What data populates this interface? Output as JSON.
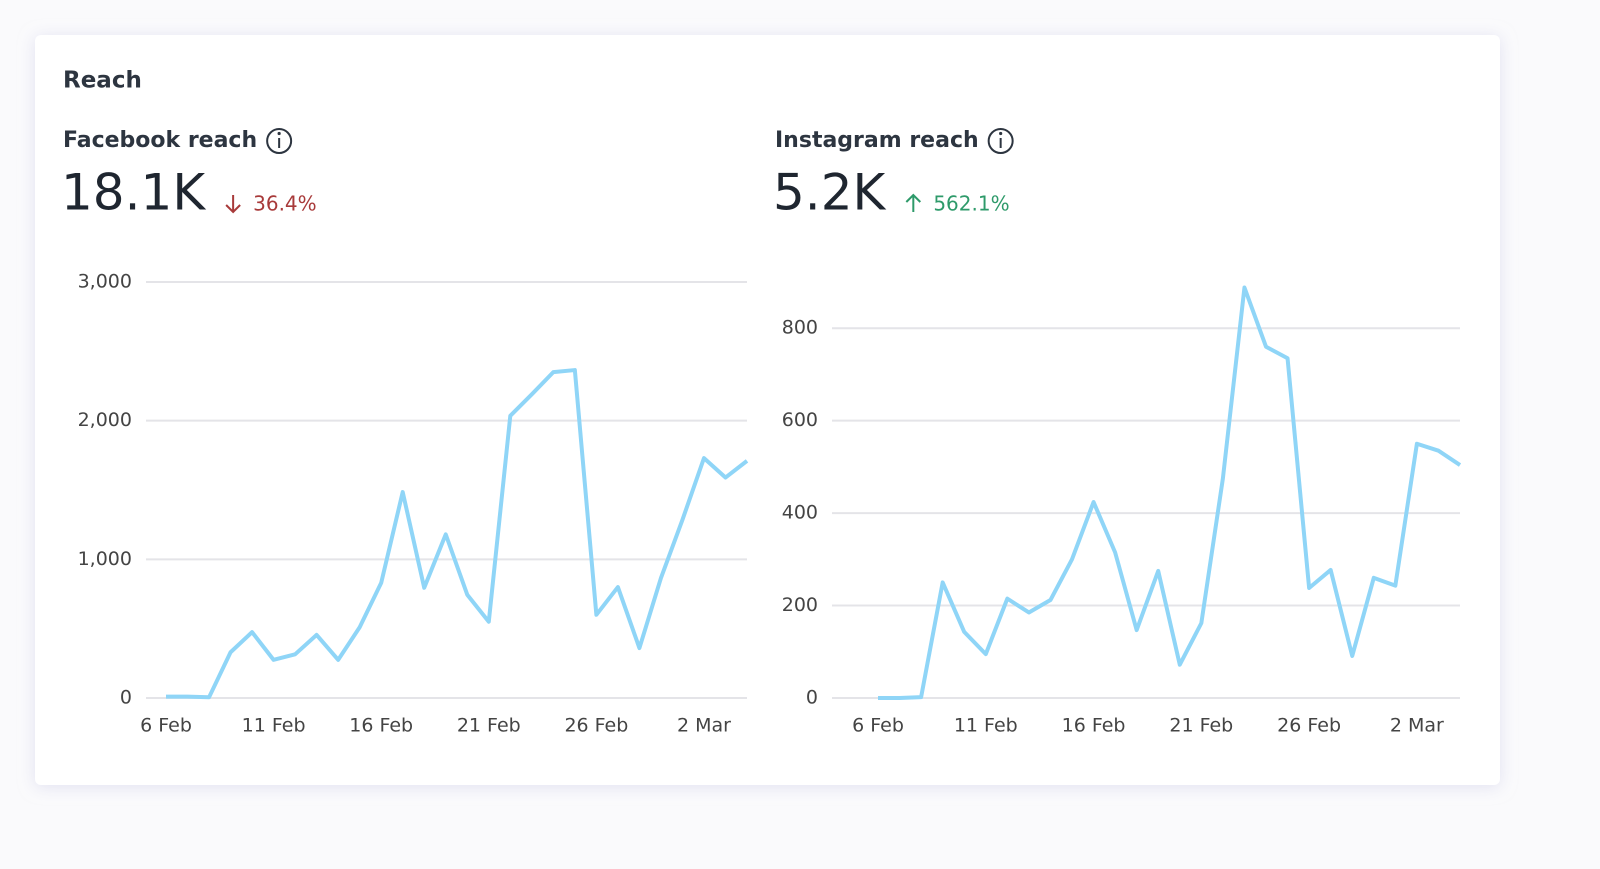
{
  "card_title": "Reach",
  "chart_data": [
    {
      "type": "line",
      "title": "Facebook reach",
      "headline": "18.1K",
      "change": "36.4%",
      "change_direction": "down",
      "change_color": "#a83a3a",
      "categories": [
        "6 Feb",
        null,
        null,
        null,
        null,
        "11 Feb",
        null,
        null,
        null,
        null,
        "16 Feb",
        null,
        null,
        null,
        null,
        "21 Feb",
        null,
        null,
        null,
        null,
        "26 Feb",
        null,
        null,
        null,
        null,
        "2 Mar",
        null,
        null
      ],
      "series": [
        {
          "name": "Facebook reach",
          "color": "#8fd5f7",
          "values": [
            10,
            10,
            5,
            330,
            475,
            275,
            315,
            455,
            275,
            510,
            830,
            1485,
            795,
            1180,
            745,
            550,
            2035,
            2190,
            2350,
            2365,
            600,
            800,
            360,
            865,
            1285,
            1730,
            1590,
            1710
          ]
        }
      ],
      "ylim": [
        0,
        3000
      ],
      "yticks": [
        0,
        {
          "value": 1000,
          "label": "1,000"
        },
        {
          "value": 2000,
          "label": "2,000"
        },
        {
          "value": 3000,
          "label": "3,000"
        }
      ],
      "grid": true
    },
    {
      "type": "line",
      "title": "Instagram reach",
      "headline": "5.2K",
      "change": "562.1%",
      "change_direction": "up",
      "change_color": "#2e9a6a",
      "categories": [
        "6 Feb",
        null,
        null,
        null,
        null,
        "11 Feb",
        null,
        null,
        null,
        null,
        "16 Feb",
        null,
        null,
        null,
        null,
        "21 Feb",
        null,
        null,
        null,
        null,
        "26 Feb",
        null,
        null,
        null,
        null,
        "2 Mar",
        null,
        null
      ],
      "series": [
        {
          "name": "Instagram reach",
          "color": "#8fd5f7",
          "values": [
            0,
            0,
            2,
            250,
            143,
            95,
            215,
            185,
            212,
            300,
            424,
            315,
            147,
            275,
            72,
            162,
            475,
            888,
            760,
            735,
            238,
            277,
            91,
            260,
            243,
            550,
            535,
            504
          ]
        }
      ],
      "ylim": [
        0,
        900
      ],
      "yticks": [
        0,
        200,
        400,
        600,
        800
      ],
      "grid": true
    }
  ]
}
